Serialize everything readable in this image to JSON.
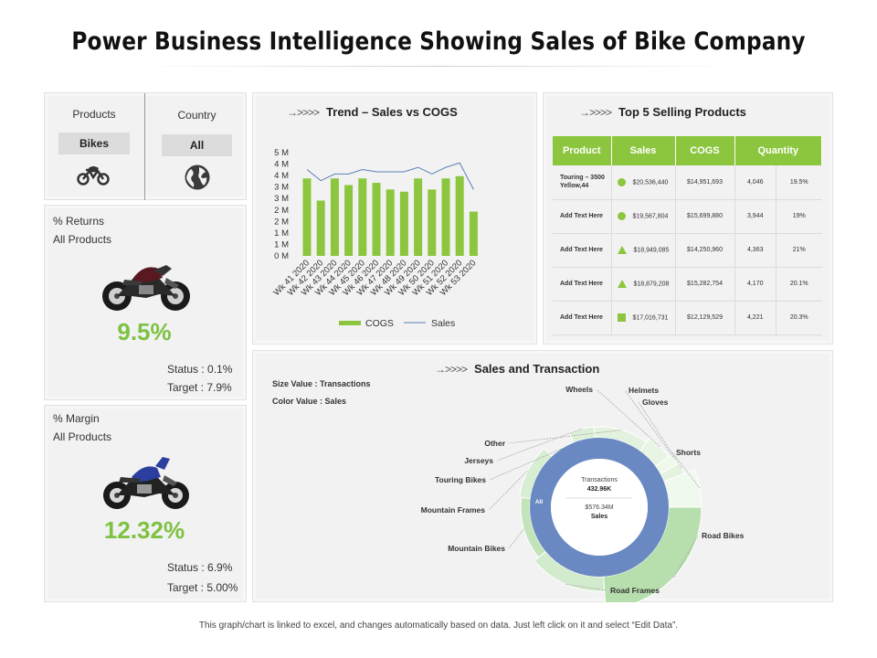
{
  "title": "Power Business Intelligence Showing Sales of Bike Company",
  "filters": {
    "products_label": "Products",
    "products_value": "Bikes",
    "country_label": "Country",
    "country_value": "All"
  },
  "returns": {
    "label_line1": "% Returns",
    "label_line2": "All Products",
    "value": "9.5%",
    "status": "Status : 0.1%",
    "target": "Target : 7.9%"
  },
  "margin": {
    "label_line1": "% Margin",
    "label_line2": "All Products",
    "value": "12.32%",
    "status": "Status : 6.9%",
    "target": "Target : 5.00%"
  },
  "trend": {
    "arrow": "→>>>>",
    "title": "Trend – Sales vs COGS"
  },
  "top5": {
    "arrow": "→>>>>",
    "title": "Top 5 Selling Products",
    "headers": [
      "Product",
      "Sales",
      "COGS",
      "Quantity"
    ],
    "rows": [
      {
        "product": "Touring – 3500 Yellow,44",
        "marker": "circle",
        "sales": "$20,536,440",
        "cogs": "$14,951,693",
        "qty": "4,046",
        "pct": "19.5%"
      },
      {
        "product": "Add Text Here",
        "marker": "circle",
        "sales": "$19,567,804",
        "cogs": "$15,699,880",
        "qty": "3,944",
        "pct": "19%"
      },
      {
        "product": "Add Text Here",
        "marker": "triangle",
        "sales": "$18,949,085",
        "cogs": "$14,250,960",
        "qty": "4,363",
        "pct": "21%"
      },
      {
        "product": "Add Text Here",
        "marker": "triangle",
        "sales": "$18,879,208",
        "cogs": "$15,282,754",
        "qty": "4,170",
        "pct": "20.1%"
      },
      {
        "product": "Add Text Here",
        "marker": "square",
        "sales": "$17,016,731",
        "cogs": "$12,129,529",
        "qty": "4,221",
        "pct": "20.3%"
      }
    ]
  },
  "sales_transaction": {
    "arrow": "→>>>>",
    "title": "Sales and Transaction",
    "size_value": "Size Value : Transactions",
    "color_value": "Color Value : Sales",
    "center_label": "Transactions",
    "center_transactions": "432.96K",
    "center_sales": "$576.34M",
    "center_sales_label": "Sales",
    "all_label": "All"
  },
  "footer": "This graph/chart is linked to excel, and changes automatically based on data. Just left click on it and select “Edit Data”.",
  "colors": {
    "accent_green": "#8cc63f",
    "kpi_green": "#7dc242",
    "line_blue": "#5b7fb5",
    "donut_blue": "#6a89c2"
  },
  "chart_data": [
    {
      "type": "bar",
      "title": "Trend – Sales vs COGS",
      "categories": [
        "Wk 41 2020",
        "Wk 42 2020",
        "Wk 43 2020",
        "Wk 44 2020",
        "Wk 45 2020",
        "Wk 46 2020",
        "Wk 47 2020",
        "Wk 48 2020",
        "Wk 49 2020",
        "Wk 50 2020",
        "Wk 51 2020",
        "Wk 52 2020",
        "Wk 53 2020"
      ],
      "y_tick_labels": [
        "0 M",
        "1 M",
        "1 M",
        "2 M",
        "2 M",
        "3 M",
        "3 M",
        "4 M",
        "4 M",
        "5 M"
      ],
      "ylim": [
        0,
        4.5
      ],
      "series": [
        {
          "name": "COGS",
          "kind": "bar",
          "values": [
            3.5,
            2.5,
            3.5,
            3.2,
            3.5,
            3.3,
            3.0,
            2.9,
            3.5,
            3.0,
            3.5,
            3.6,
            2.0
          ]
        },
        {
          "name": "Sales",
          "kind": "line",
          "values": [
            3.9,
            3.4,
            3.7,
            3.7,
            3.9,
            3.8,
            3.8,
            3.8,
            4.0,
            3.7,
            4.0,
            4.2,
            3.0
          ]
        }
      ],
      "legend": [
        "COGS",
        "Sales"
      ]
    },
    {
      "type": "pie",
      "title": "Sales and Transaction",
      "subtype": "sunburst",
      "size_measure": "Transactions",
      "color_measure": "Sales",
      "slices": [
        {
          "label": "Road Bikes",
          "value": 24
        },
        {
          "label": "Road Frames",
          "value": 15
        },
        {
          "label": "Mountain Bikes",
          "value": 13
        },
        {
          "label": "Mountain Frames",
          "value": 11
        },
        {
          "label": "Touring Bikes",
          "value": 6
        },
        {
          "label": "Jerseys",
          "value": 5
        },
        {
          "label": "Other",
          "value": 11
        },
        {
          "label": "Wheels",
          "value": 5
        },
        {
          "label": "Helmets",
          "value": 2
        },
        {
          "label": "Gloves",
          "value": 2
        },
        {
          "label": "Shorts",
          "value": 6
        }
      ],
      "center": {
        "transactions": "432.96K",
        "sales": "$576.34M"
      }
    }
  ]
}
